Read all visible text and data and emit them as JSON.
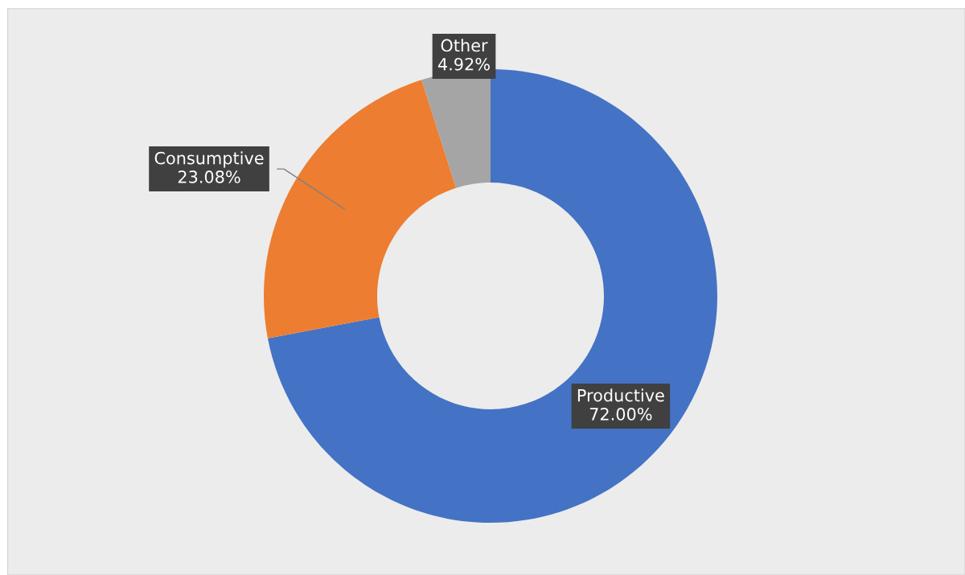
{
  "chart_data": {
    "type": "donut",
    "categories": [
      "Productive",
      "Consumptive",
      "Other"
    ],
    "values": [
      72.0,
      23.08,
      4.92
    ],
    "colors": [
      "#4472c4",
      "#ed7d31",
      "#a5a5a5"
    ],
    "value_labels": [
      "72.00%",
      "23.08%",
      "4.92%"
    ],
    "legend": false
  }
}
